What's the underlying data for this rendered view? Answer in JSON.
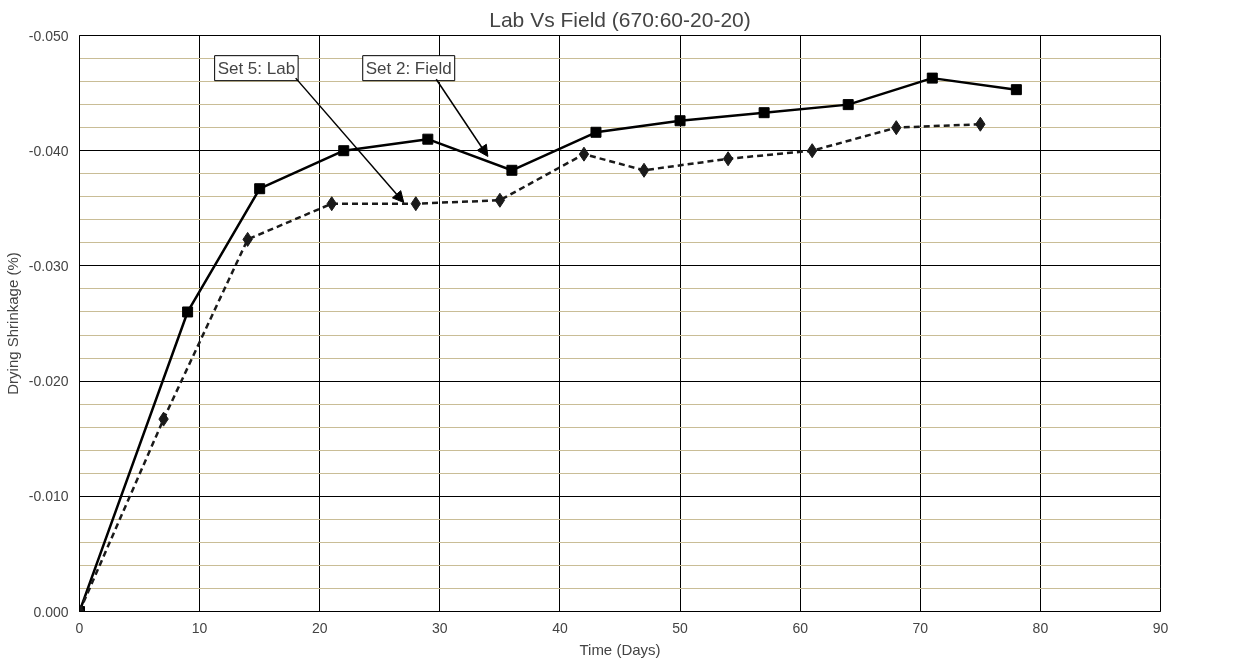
{
  "chart_data": {
    "type": "line",
    "title": "Lab Vs Field (670:60-20-20)",
    "xlabel": "Time (Days)",
    "ylabel": "Drying Shrinkage (%)",
    "xlim": [
      0,
      90
    ],
    "xticks": [
      0,
      10,
      20,
      30,
      40,
      50,
      60,
      70,
      80,
      90
    ],
    "ylim": [
      0,
      -0.05
    ],
    "yticks": [
      {
        "value": 0,
        "label": "0.000"
      },
      {
        "value": -0.002,
        "label": null
      },
      {
        "value": -0.004,
        "label": null
      },
      {
        "value": -0.006,
        "label": null
      },
      {
        "value": -0.008,
        "label": null
      },
      {
        "value": -0.01,
        "label": "-0.010"
      },
      {
        "value": -0.012,
        "label": null
      },
      {
        "value": -0.014,
        "label": null
      },
      {
        "value": -0.016,
        "label": null
      },
      {
        "value": -0.018,
        "label": null
      },
      {
        "value": -0.02,
        "label": "-0.020"
      },
      {
        "value": -0.022,
        "label": null
      },
      {
        "value": -0.024,
        "label": null
      },
      {
        "value": -0.026,
        "label": null
      },
      {
        "value": -0.028,
        "label": null
      },
      {
        "value": -0.03,
        "label": "-0.030"
      },
      {
        "value": -0.032,
        "label": null
      },
      {
        "value": -0.034,
        "label": null
      },
      {
        "value": -0.036,
        "label": null
      },
      {
        "value": -0.038,
        "label": null
      },
      {
        "value": -0.04,
        "label": "-0.040"
      },
      {
        "value": -0.042,
        "label": null
      },
      {
        "value": -0.044,
        "label": null
      },
      {
        "value": -0.046,
        "label": null
      },
      {
        "value": -0.048,
        "label": null
      },
      {
        "value": -0.05,
        "label": "-0.050"
      }
    ],
    "grid": true,
    "series": [
      {
        "color": "#000000",
        "marker": "square",
        "line_style": "solid",
        "x": [
          0,
          9,
          15,
          22,
          29,
          36,
          43,
          50,
          57,
          64,
          71,
          78
        ],
        "values": [
          0,
          -0.026,
          -0.0367,
          -0.04,
          -0.041,
          -0.0383,
          -0.0416,
          -0.0426,
          -0.0433,
          -0.044,
          -0.0463,
          -0.0453
        ]
      },
      {
        "color": "#1a1a1a",
        "marker": "diamond",
        "line_style": "dashed",
        "x": [
          0,
          7,
          14,
          21,
          28,
          35,
          42,
          47,
          54,
          61,
          68,
          75
        ],
        "values": [
          0,
          -0.0167,
          -0.0323,
          -0.0354,
          -0.0354,
          -0.0357,
          -0.0397,
          -0.0383,
          -0.0393,
          -0.04,
          -0.042,
          -0.0423
        ]
      }
    ],
    "annotations": [
      {
        "text": "Set 5: Lab",
        "x": 27,
        "y": -0.0355
      },
      {
        "text": "Set 2: Field",
        "x": 34,
        "y": -0.0395
      }
    ]
  }
}
